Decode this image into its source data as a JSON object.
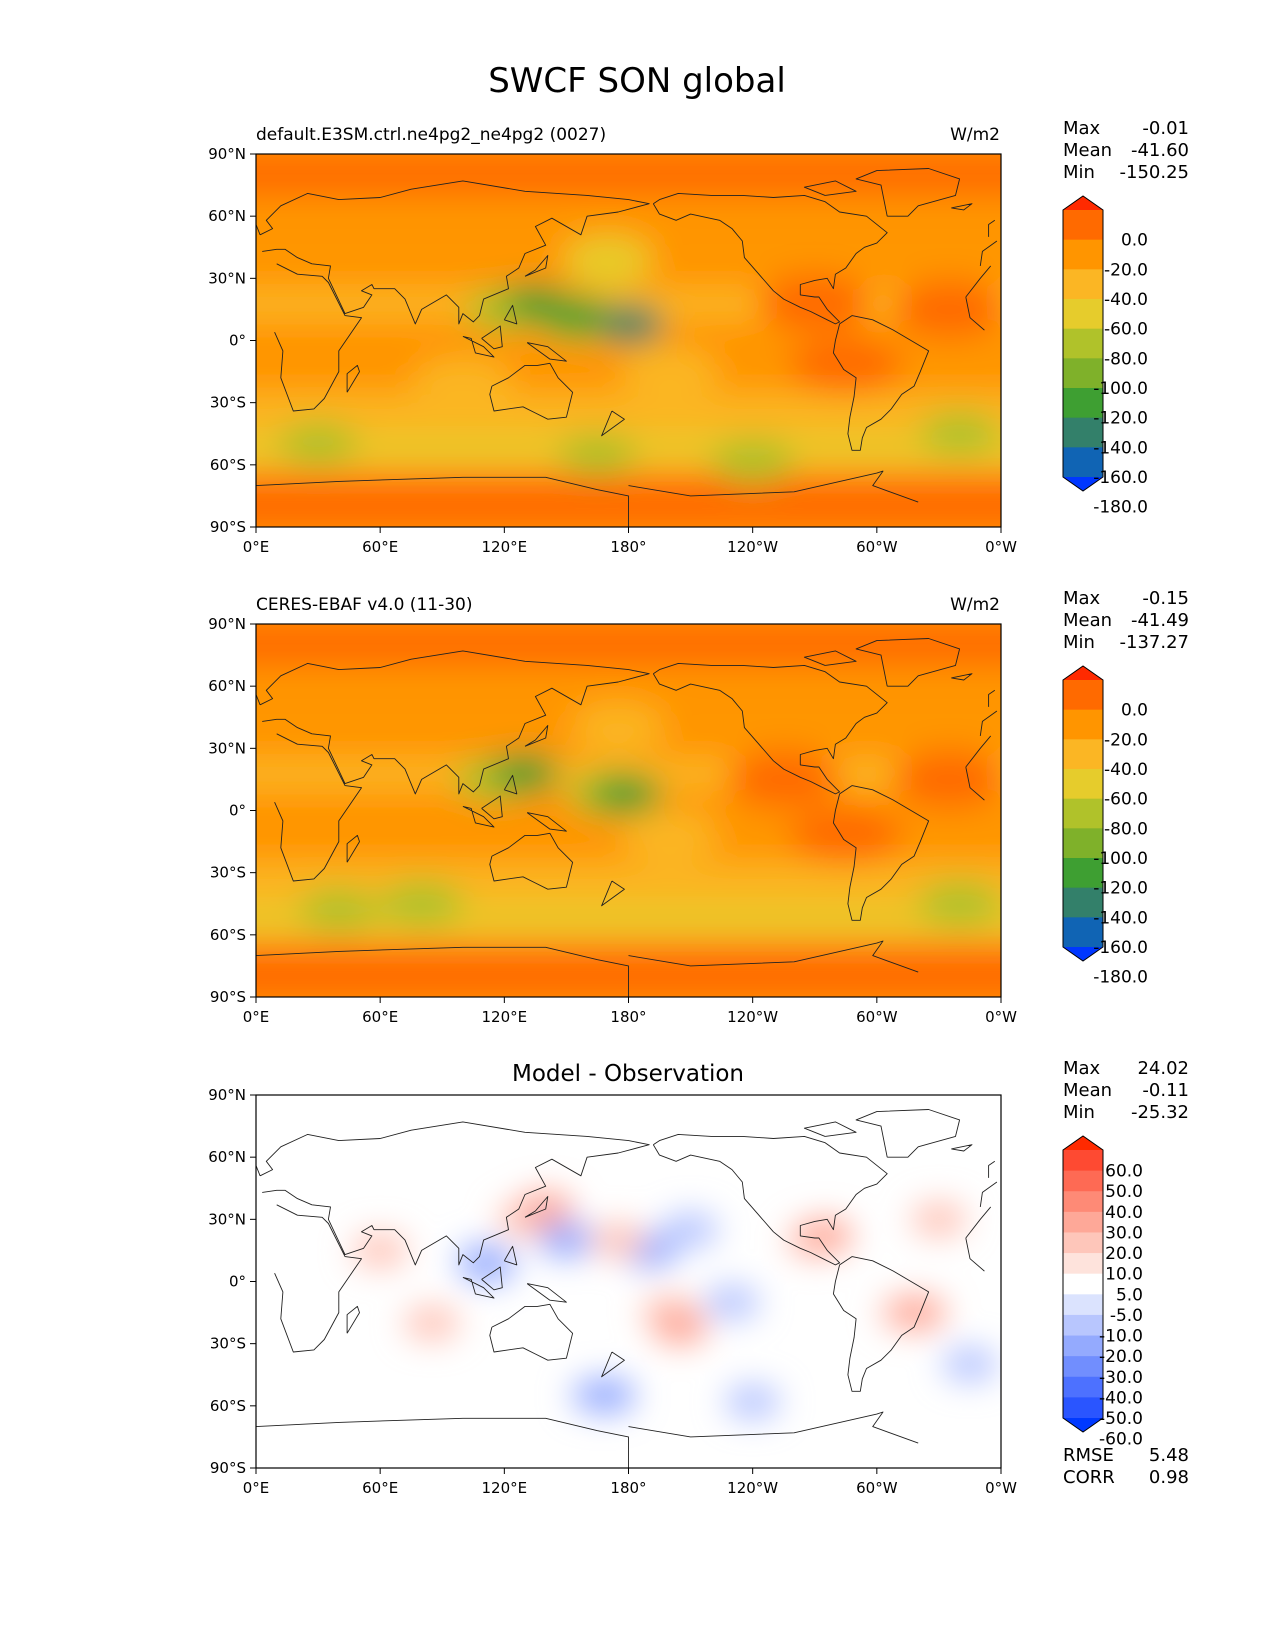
{
  "figure_title": "SWCF SON global",
  "chart_data": [
    {
      "type": "heatmap",
      "map_type": "filled-contour-map",
      "title": "default.E3SM.ctrl.ne4pg2_ne4pg2 (0027)",
      "units": "W/m2",
      "stats": {
        "max_label": "Max",
        "max": "-0.01",
        "mean_label": "Mean",
        "mean": "-41.60",
        "min_label": "Min",
        "min": "-150.25"
      },
      "colorbar": {
        "labels": [
          "0.0",
          "-20.0",
          "-40.0",
          "-60.0",
          "-80.0",
          "-100.0",
          "-120.0",
          "-140.0",
          "-160.0",
          "-180.0"
        ],
        "colors": [
          "#ff2a00",
          "#ff6a00",
          "#ff9500",
          "#fbb624",
          "#e6cc2c",
          "#b0c22a",
          "#7fb12a",
          "#3e9f32",
          "#33806a",
          "#1064b4",
          "#0037ff"
        ]
      },
      "xticks": [
        "0°E",
        "60°E",
        "120°E",
        "180°",
        "120°W",
        "60°W",
        "0°W"
      ],
      "yticks": [
        "90°N",
        "60°N",
        "30°N",
        "0°",
        "30°S",
        "60°S",
        "90°S"
      ],
      "xlim": [
        0,
        360
      ],
      "ylim": [
        -90,
        90
      ],
      "zonal_bands": [
        [
          90,
          70,
          -20
        ],
        [
          70,
          55,
          -30
        ],
        [
          55,
          40,
          -40
        ],
        [
          40,
          25,
          -30
        ],
        [
          25,
          10,
          -50
        ],
        [
          10,
          -10,
          -40
        ],
        [
          -10,
          -25,
          -40
        ],
        [
          -25,
          -38,
          -50
        ],
        [
          -38,
          -46,
          -60
        ],
        [
          -46,
          -58,
          -80
        ],
        [
          -58,
          -65,
          -50
        ],
        [
          -65,
          -90,
          -20
        ]
      ],
      "blobs": [
        [
          120,
          15,
          -100
        ],
        [
          155,
          10,
          -100
        ],
        [
          180,
          8,
          -120
        ],
        [
          135,
          18,
          -140
        ],
        [
          155,
          12,
          -130
        ],
        [
          182,
          8,
          -150
        ],
        [
          270,
          18,
          -20
        ],
        [
          285,
          -12,
          -20
        ],
        [
          335,
          15,
          -20
        ],
        [
          170,
          40,
          -60
        ],
        [
          170,
          38,
          -80
        ],
        [
          165,
          -55,
          -100
        ],
        [
          240,
          -58,
          -90
        ],
        [
          30,
          -50,
          -100
        ],
        [
          340,
          -45,
          -100
        ],
        [
          200,
          -15,
          -50
        ],
        [
          100,
          -20,
          -50
        ]
      ]
    },
    {
      "type": "heatmap",
      "map_type": "filled-contour-map",
      "title": "CERES-EBAF v4.0 (11-30)",
      "units": "W/m2",
      "stats": {
        "max_label": "Max",
        "max": "-0.15",
        "mean_label": "Mean",
        "mean": "-41.49",
        "min_label": "Min",
        "min": "-137.27"
      },
      "colorbar": {
        "labels": [
          "0.0",
          "-20.0",
          "-40.0",
          "-60.0",
          "-80.0",
          "-100.0",
          "-120.0",
          "-140.0",
          "-160.0",
          "-180.0"
        ],
        "colors": [
          "#ff2a00",
          "#ff6a00",
          "#ff9500",
          "#fbb624",
          "#e6cc2c",
          "#b0c22a",
          "#7fb12a",
          "#3e9f32",
          "#33806a",
          "#1064b4",
          "#0037ff"
        ]
      },
      "xticks": [
        "0°E",
        "60°E",
        "120°E",
        "180°",
        "120°W",
        "60°W",
        "0°W"
      ],
      "yticks": [
        "90°N",
        "60°N",
        "30°N",
        "0°",
        "30°S",
        "60°S",
        "90°S"
      ],
      "xlim": [
        0,
        360
      ],
      "ylim": [
        -90,
        90
      ],
      "zonal_bands": [
        [
          90,
          70,
          -20
        ],
        [
          70,
          55,
          -30
        ],
        [
          55,
          40,
          -40
        ],
        [
          40,
          25,
          -30
        ],
        [
          25,
          10,
          -50
        ],
        [
          10,
          -10,
          -40
        ],
        [
          -10,
          -25,
          -40
        ],
        [
          -25,
          -38,
          -50
        ],
        [
          -38,
          -46,
          -60
        ],
        [
          -46,
          -58,
          -80
        ],
        [
          -58,
          -65,
          -50
        ],
        [
          -65,
          -90,
          -20
        ]
      ],
      "blobs": [
        [
          115,
          15,
          -100
        ],
        [
          170,
          8,
          -100
        ],
        [
          178,
          8,
          -120
        ],
        [
          130,
          18,
          -130
        ],
        [
          180,
          8,
          -135
        ],
        [
          255,
          15,
          -20
        ],
        [
          285,
          -12,
          -20
        ],
        [
          335,
          15,
          -20
        ],
        [
          175,
          40,
          -60
        ],
        [
          40,
          -48,
          -100
        ],
        [
          80,
          -45,
          -90
        ],
        [
          340,
          -45,
          -90
        ],
        [
          200,
          -12,
          -50
        ]
      ]
    },
    {
      "type": "heatmap",
      "map_type": "filled-contour-map",
      "title": "Model - Observation",
      "units": "",
      "stats": {
        "max_label": "Max",
        "max": "24.02",
        "mean_label": "Mean",
        "mean": "-0.11",
        "min_label": "Min",
        "min": "-25.32"
      },
      "rmse_label": "RMSE",
      "rmse": "5.48",
      "corr_label": "CORR",
      "corr": "0.98",
      "colorbar": {
        "labels": [
          "60.0",
          "50.0",
          "40.0",
          "30.0",
          "20.0",
          "10.0",
          "5.0",
          "-5.0",
          "-10.0",
          "-20.0",
          "-30.0",
          "-40.0",
          "-50.0",
          "-60.0"
        ],
        "colors": [
          "#ff2a00",
          "#fe4a32",
          "#fe6a54",
          "#fe8a76",
          "#fea898",
          "#fec6ba",
          "#fee3dc",
          "#ffffff",
          "#dbe3fe",
          "#b8c6fe",
          "#94aafe",
          "#718efe",
          "#4d71ff",
          "#2a55ff",
          "#0039ff"
        ]
      },
      "xticks": [
        "0°E",
        "60°E",
        "120°E",
        "180°",
        "120°W",
        "60°W",
        "0°W"
      ],
      "yticks": [
        "90°N",
        "60°N",
        "30°N",
        "0°",
        "30°S",
        "60°S",
        "90°S"
      ],
      "xlim": [
        0,
        360
      ],
      "ylim": [
        -90,
        90
      ],
      "blobs": [
        [
          130,
          30,
          10
        ],
        [
          140,
          35,
          20
        ],
        [
          110,
          10,
          -10
        ],
        [
          112,
          8,
          -20
        ],
        [
          150,
          20,
          -10
        ],
        [
          150,
          20,
          -20
        ],
        [
          190,
          15,
          -10
        ],
        [
          190,
          15,
          -20
        ],
        [
          175,
          20,
          10
        ],
        [
          210,
          25,
          -10
        ],
        [
          270,
          20,
          10
        ],
        [
          275,
          22,
          20
        ],
        [
          315,
          -15,
          10
        ],
        [
          320,
          -15,
          20
        ],
        [
          200,
          -15,
          10
        ],
        [
          205,
          -22,
          20
        ],
        [
          330,
          30,
          10
        ],
        [
          165,
          -55,
          -10
        ],
        [
          170,
          -55,
          -20
        ],
        [
          240,
          -58,
          -10
        ],
        [
          345,
          -40,
          -10
        ],
        [
          85,
          -20,
          10
        ],
        [
          60,
          15,
          10
        ],
        [
          230,
          -10,
          -10
        ]
      ]
    }
  ]
}
